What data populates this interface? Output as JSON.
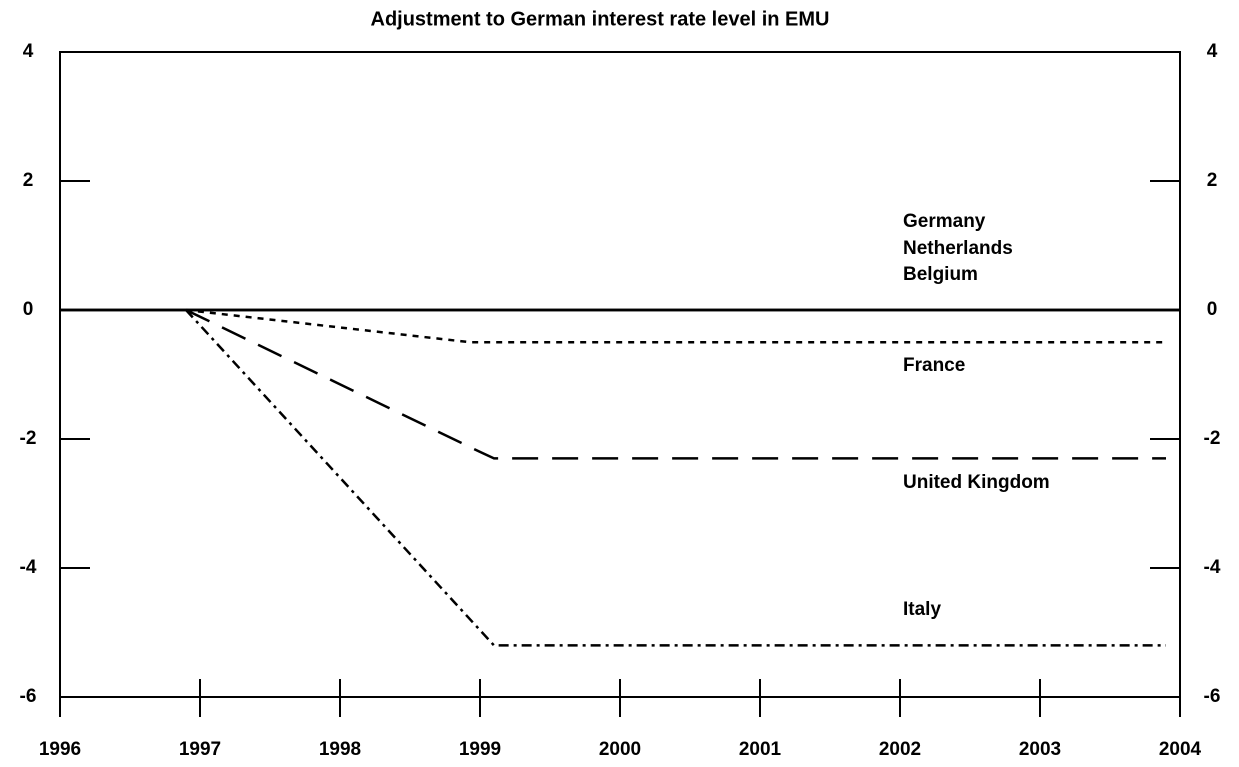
{
  "chart_data": {
    "type": "line",
    "title": "Adjustment to German interest rate level in EMU",
    "xlim": [
      1996,
      2004
    ],
    "xticks": [
      1996,
      1997,
      1998,
      1999,
      2000,
      2001,
      2002,
      2003,
      2004
    ],
    "ylim": [
      -6,
      4
    ],
    "yticks": [
      -6,
      -4,
      -2,
      0,
      2,
      4
    ],
    "y2lim": [
      -6,
      4
    ],
    "y2ticks": [
      -6,
      -4,
      -2,
      0,
      2,
      4
    ],
    "grid": false,
    "series": [
      {
        "name": "Germany",
        "color": "#000000",
        "dash": "solid",
        "x": [
          1996,
          2004
        ],
        "values": [
          0,
          0
        ]
      },
      {
        "name": "Netherlands",
        "color": "#000000",
        "dash": "solid",
        "x": [
          1996,
          2004
        ],
        "values": [
          0,
          0
        ]
      },
      {
        "name": "Belgium",
        "color": "#000000",
        "dash": "solid",
        "x": [
          1996,
          2004
        ],
        "values": [
          0,
          0
        ]
      },
      {
        "name": "France",
        "color": "#000000",
        "dash": "short",
        "x": [
          1996.9,
          1998.93,
          2003.9
        ],
        "values": [
          0,
          -0.5,
          -0.5
        ]
      },
      {
        "name": "United Kingdom",
        "color": "#000000",
        "dash": "long",
        "x": [
          1996.9,
          1999.0,
          1999.1,
          2003.9
        ],
        "values": [
          0,
          -2.2,
          -2.3,
          -2.3
        ]
      },
      {
        "name": "Italy",
        "color": "#000000",
        "dash": "dashdot",
        "x": [
          1996.9,
          1999.1,
          2003.9
        ],
        "values": [
          0,
          -5.2,
          -5.2
        ]
      }
    ]
  }
}
